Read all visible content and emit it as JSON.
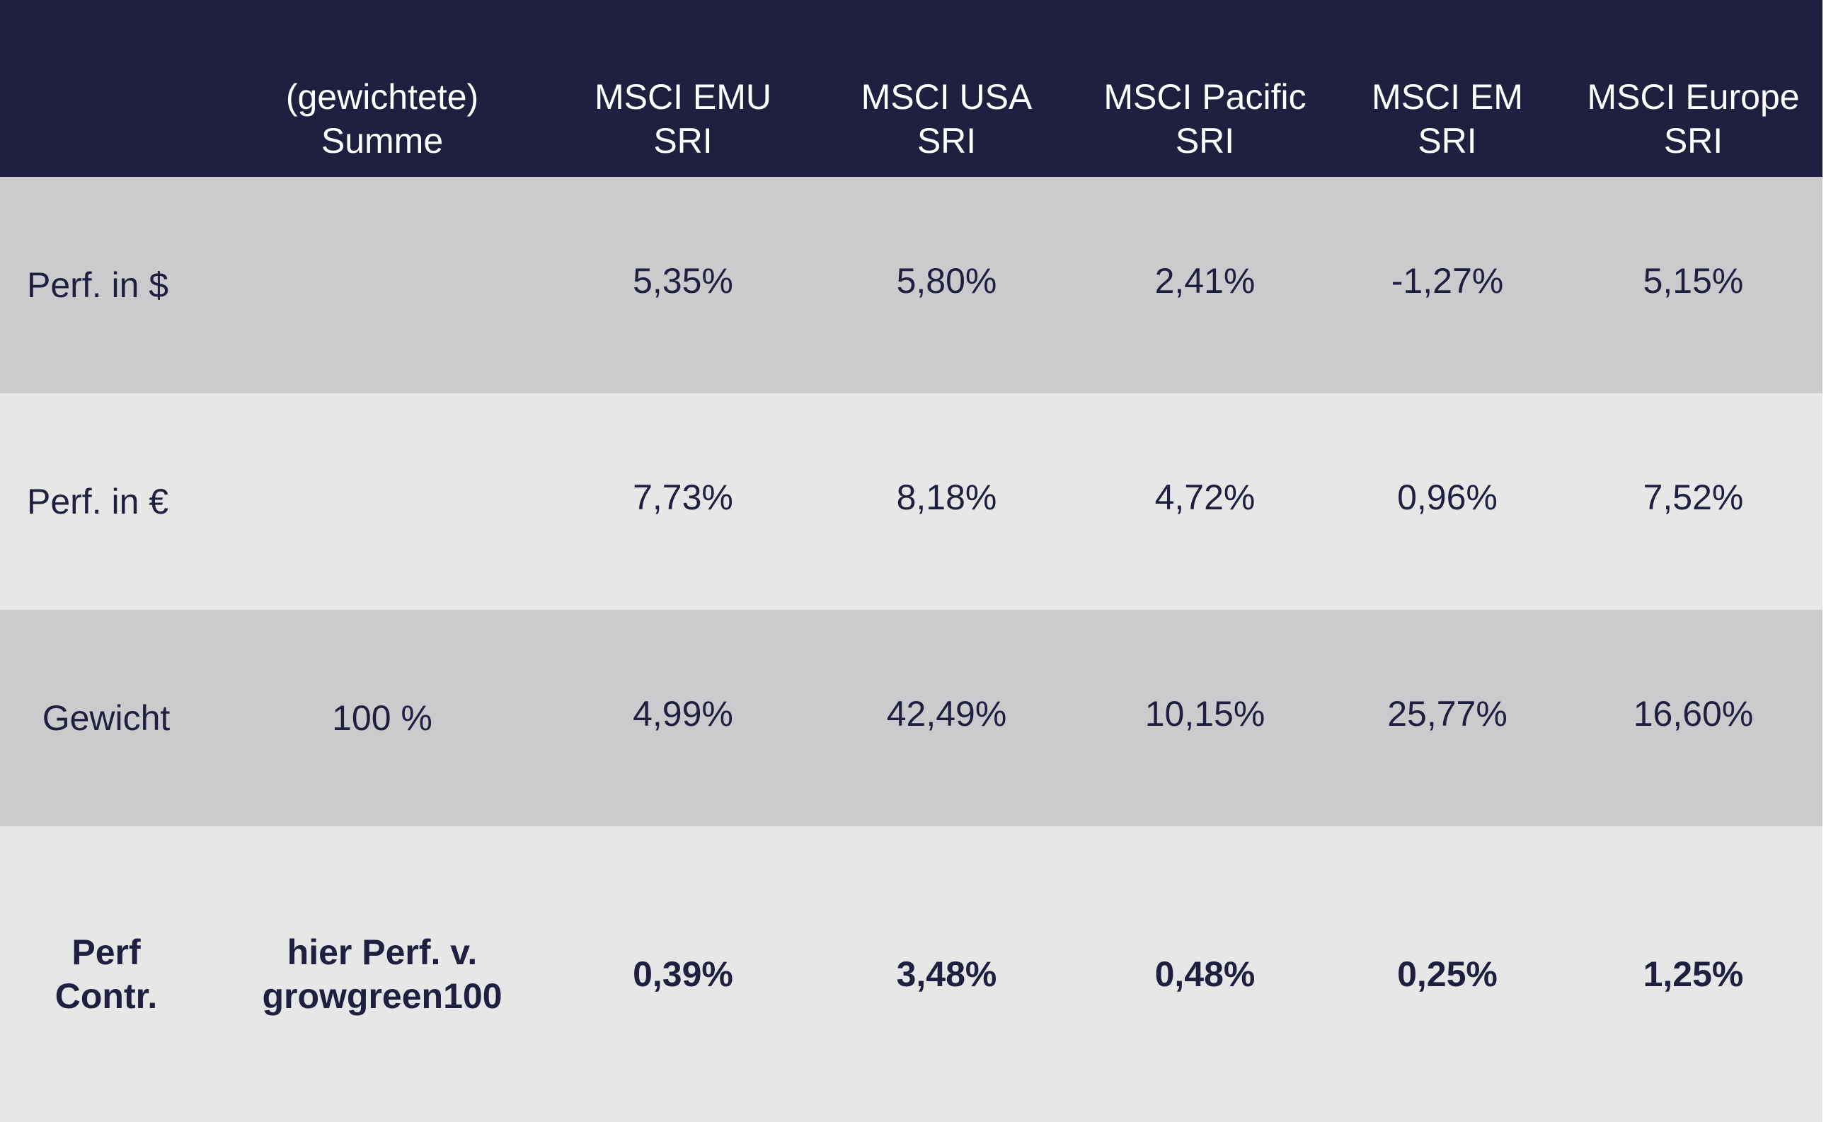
{
  "header": {
    "columns": [
      "",
      "(gewichtete)\nSumme",
      "MSCI EMU\nSRI",
      "MSCI USA\nSRI",
      "MSCI Pacific\nSRI",
      "MSCI EM\nSRI",
      "MSCI Europe\nSRI"
    ],
    "lines": [
      [
        "",
        ""
      ],
      [
        "(gewichtete)",
        "Summe"
      ],
      [
        "MSCI EMU",
        "SRI"
      ],
      [
        "MSCI USA",
        "SRI"
      ],
      [
        "MSCI Pacific",
        "SRI"
      ],
      [
        "MSCI EM",
        "SRI"
      ],
      [
        "MSCI Europe",
        "SRI"
      ]
    ]
  },
  "rows": [
    {
      "label": "Perf. in $",
      "sum": "",
      "values": [
        "5,35%",
        "5,80%",
        "2,41%",
        "-1,27%",
        "5,15%"
      ]
    },
    {
      "label": "Perf. in €",
      "sum": "",
      "values": [
        "7,73%",
        "8,18%",
        "4,72%",
        "0,96%",
        "7,52%"
      ]
    },
    {
      "label": "Gewicht",
      "sum": "100 %",
      "values": [
        "4,99%",
        "42,49%",
        "10,15%",
        "25,77%",
        "16,60%"
      ]
    },
    {
      "label_lines": [
        "Perf",
        "Contr."
      ],
      "sum_lines": [
        "hier Perf. v.",
        "growgreen100"
      ],
      "values": [
        "0,39%",
        "3,48%",
        "0,48%",
        "0,25%",
        "1,25%"
      ]
    }
  ],
  "colors": {
    "header_bg": "#1f2040",
    "row_dark": "#cbcbcd",
    "row_light": "#e7e7e7",
    "text": "#1f2040"
  }
}
